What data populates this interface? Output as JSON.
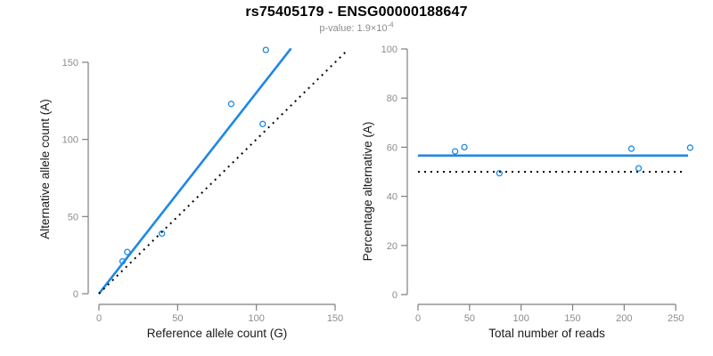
{
  "header": {
    "title": "rs75405179 - ENSG00000188647",
    "subtitle_prefix": "p-value: 1.9×10",
    "subtitle_exponent": "-4"
  },
  "colors": {
    "accent_blue": "#1E88E5",
    "dotted_black": "#000000",
    "axis_line": "#7F7F7F",
    "tick_label": "#8C8C8C",
    "axis_title": "#1A1A1A",
    "subtitle_gray": "#8C8C8C"
  },
  "chart_data": [
    {
      "type": "scatter",
      "panel": "left",
      "title": "",
      "xlabel": "Reference allele count (G)",
      "ylabel": "Alternative allele count (A)",
      "xlim": [
        0,
        150
      ],
      "ylim": [
        0,
        160
      ],
      "xticks": [
        0,
        50,
        100,
        150
      ],
      "yticks": [
        0,
        50,
        100,
        150
      ],
      "grid": false,
      "legend": null,
      "points": [
        {
          "x": 15,
          "y": 21
        },
        {
          "x": 18,
          "y": 27
        },
        {
          "x": 40,
          "y": 39
        },
        {
          "x": 84,
          "y": 123
        },
        {
          "x": 104,
          "y": 110
        },
        {
          "x": 106,
          "y": 158
        }
      ],
      "lines": [
        {
          "name": "regression-line",
          "style": "solid",
          "color_key": "accent_blue",
          "x1": 0,
          "y1": 0,
          "x2": 122,
          "y2": 159
        },
        {
          "name": "identity-line",
          "style": "dotted",
          "color_key": "dotted_black",
          "x1": 0,
          "y1": 0,
          "x2": 157,
          "y2": 157
        }
      ]
    },
    {
      "type": "scatter",
      "panel": "right",
      "title": "",
      "xlabel": "Total number of reads",
      "ylabel": "Percentage alternative (A)",
      "xlim": [
        0,
        265
      ],
      "ylim": [
        0,
        100
      ],
      "xticks": [
        0,
        50,
        100,
        150,
        200,
        250
      ],
      "yticks": [
        0,
        20,
        40,
        60,
        80,
        100
      ],
      "grid": false,
      "legend": null,
      "points": [
        {
          "x": 36,
          "y": 58.3
        },
        {
          "x": 45,
          "y": 60
        },
        {
          "x": 79,
          "y": 49.4
        },
        {
          "x": 207,
          "y": 59.4
        },
        {
          "x": 214,
          "y": 51.4
        },
        {
          "x": 264,
          "y": 59.8
        }
      ],
      "lines": [
        {
          "name": "mean-percentage-line",
          "style": "solid",
          "color_key": "accent_blue",
          "x1": 0,
          "y1": 56.6,
          "x2": 262,
          "y2": 56.6
        },
        {
          "name": "null-50-percent-line",
          "style": "dotted",
          "color_key": "dotted_black",
          "x1": 0,
          "y1": 50,
          "x2": 259,
          "y2": 50
        }
      ]
    }
  ]
}
